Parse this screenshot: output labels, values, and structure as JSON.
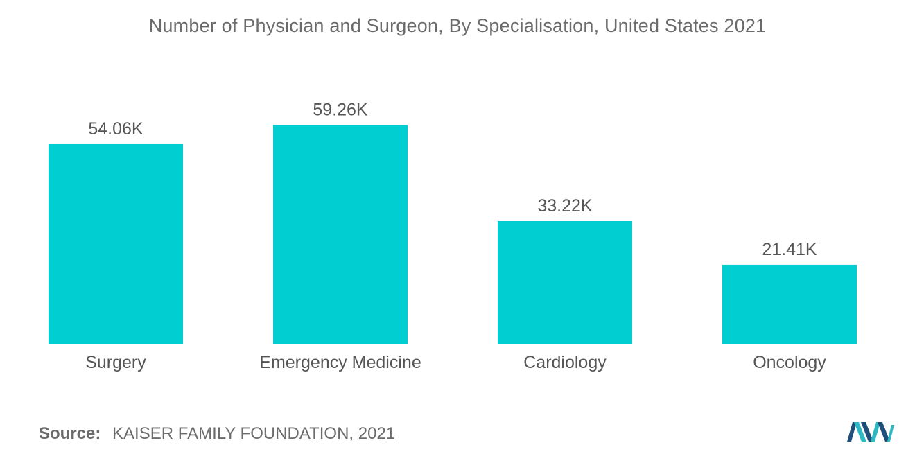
{
  "chart_data": {
    "type": "bar",
    "title": "Number of Physician and Surgeon, By Specialisation, United States 2021",
    "categories": [
      "Surgery",
      "Emergency Medicine",
      "Cardiology",
      "Oncology"
    ],
    "values": [
      54.06,
      59.26,
      33.22,
      21.41
    ],
    "data_labels": [
      "54.06K",
      "59.26K",
      "33.22K",
      "21.41K"
    ],
    "unit": "K",
    "ylim": [
      0,
      64
    ],
    "grid": false,
    "legend": "none",
    "bar_color": "#00CED1"
  },
  "source": {
    "label": "Source:",
    "text": "KAISER FAMILY FOUNDATION, 2021"
  },
  "logo": {
    "icon": "mordor-intelligence-logo",
    "colors": [
      "#1D4F7A",
      "#2EB8C4"
    ]
  }
}
